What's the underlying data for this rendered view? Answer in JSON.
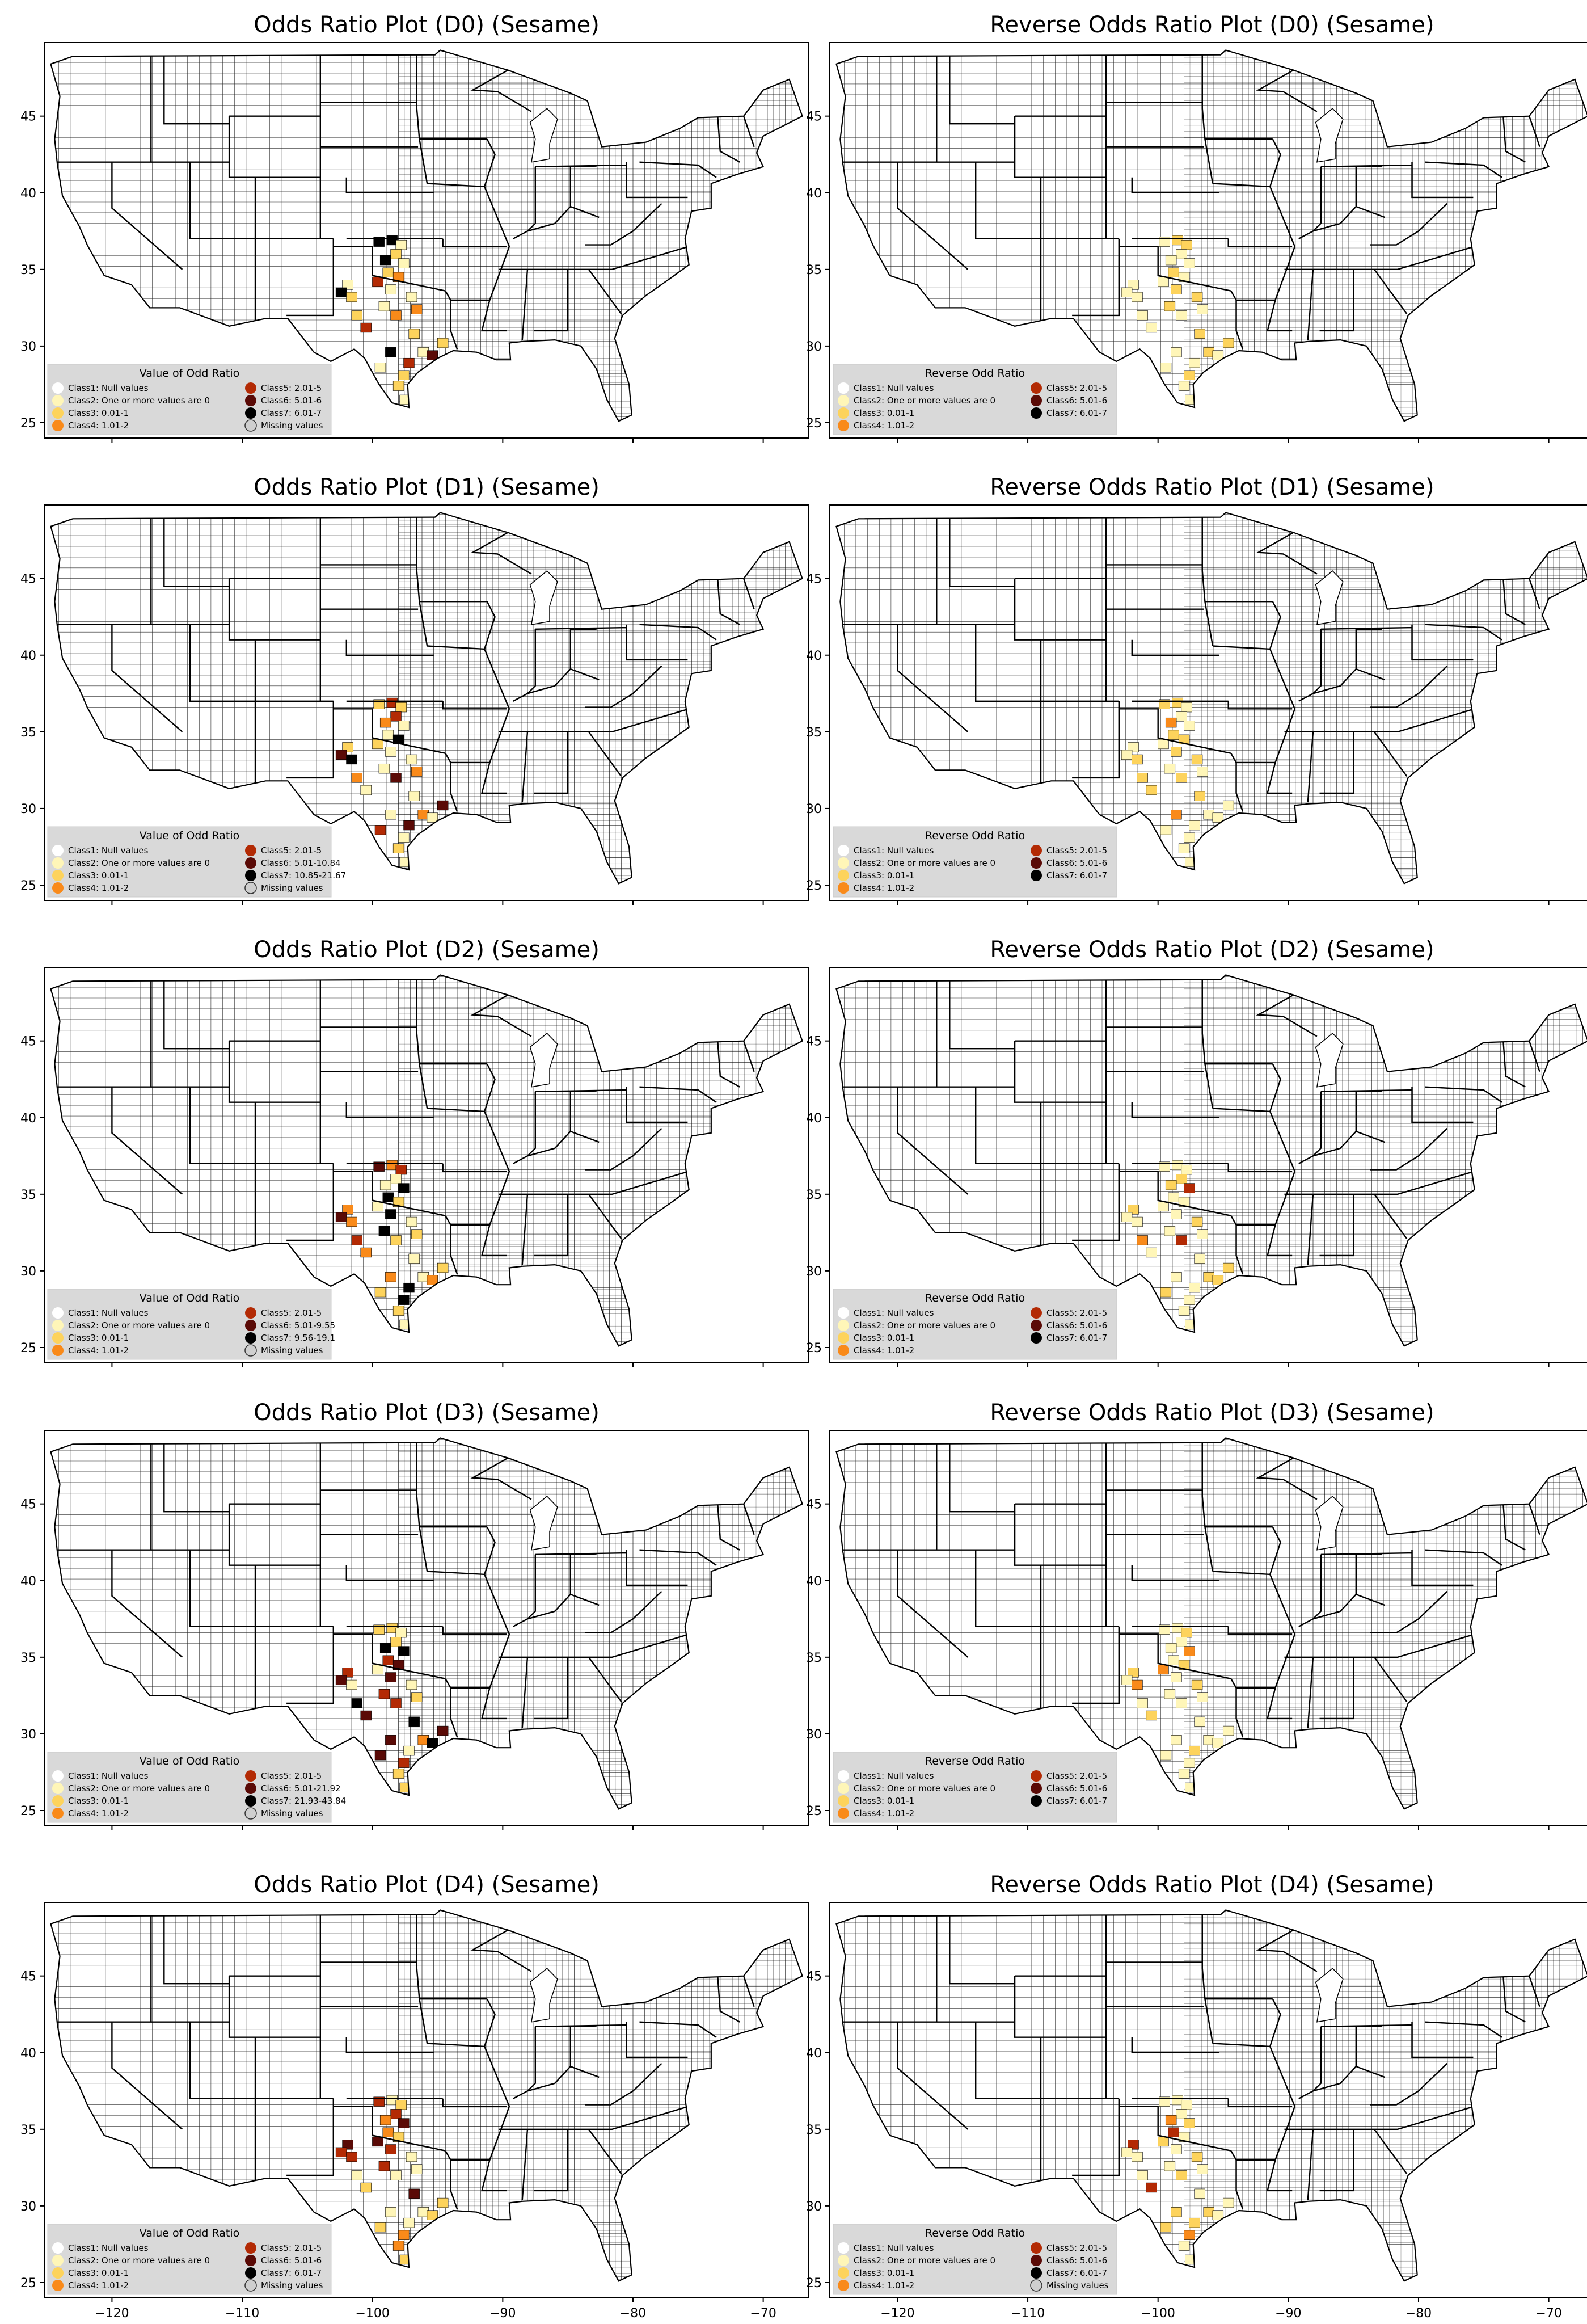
{
  "figure": {
    "panels": [
      {
        "title": "Odds Ratio Plot (D0) (Sesame)",
        "legend_title": "Value of Odd Ratio",
        "classes": [
          "Class1: Null values",
          "Class2: One or more values are 0",
          "Class3: 0.01-1",
          "Class4: 1.01-2",
          "Class5: 2.01-5",
          "Class6: 5.01-6",
          "Class7: 6.01-7",
          "Missing values"
        ]
      },
      {
        "title": "Reverse Odds Ratio Plot (D0) (Sesame)",
        "legend_title": "Reverse Odd Ratio",
        "classes": [
          "Class1: Null values",
          "Class2: One or more values are 0",
          "Class3: 0.01-1",
          "Class4: 1.01-2",
          "Class5: 2.01-5",
          "Class6: 5.01-6",
          "Class7: 6.01-7"
        ]
      },
      {
        "title": "Odds Ratio Plot (D1) (Sesame)",
        "legend_title": "Value of Odd Ratio",
        "classes": [
          "Class1: Null values",
          "Class2: One or more values are 0",
          "Class3: 0.01-1",
          "Class4: 1.01-2",
          "Class5: 2.01-5",
          "Class6: 5.01-10.84",
          "Class7: 10.85-21.67",
          "Missing values"
        ]
      },
      {
        "title": "Reverse Odds Ratio Plot (D1) (Sesame)",
        "legend_title": "Reverse Odd Ratio",
        "classes": [
          "Class1: Null values",
          "Class2: One or more values are 0",
          "Class3: 0.01-1",
          "Class4: 1.01-2",
          "Class5: 2.01-5",
          "Class6: 5.01-6",
          "Class7: 6.01-7"
        ]
      },
      {
        "title": "Odds Ratio Plot (D2) (Sesame)",
        "legend_title": "Value of Odd Ratio",
        "classes": [
          "Class1: Null values",
          "Class2: One or more values are 0",
          "Class3: 0.01-1",
          "Class4: 1.01-2",
          "Class5: 2.01-5",
          "Class6: 5.01-9.55",
          "Class7: 9.56-19.1",
          "Missing values"
        ]
      },
      {
        "title": "Reverse Odds Ratio Plot (D2) (Sesame)",
        "legend_title": "Reverse Odd Ratio",
        "classes": [
          "Class1: Null values",
          "Class2: One or more values are 0",
          "Class3: 0.01-1",
          "Class4: 1.01-2",
          "Class5: 2.01-5",
          "Class6: 5.01-6",
          "Class7: 6.01-7"
        ]
      },
      {
        "title": "Odds Ratio Plot (D3) (Sesame)",
        "legend_title": "Value of Odd Ratio",
        "classes": [
          "Class1: Null values",
          "Class2: One or more values are 0",
          "Class3: 0.01-1",
          "Class4: 1.01-2",
          "Class5: 2.01-5",
          "Class6: 5.01-21.92",
          "Class7: 21.93-43.84",
          "Missing values"
        ]
      },
      {
        "title": "Reverse Odds Ratio Plot (D3) (Sesame)",
        "legend_title": "Reverse Odd Ratio",
        "classes": [
          "Class1: Null values",
          "Class2: One or more values are 0",
          "Class3: 0.01-1",
          "Class4: 1.01-2",
          "Class5: 2.01-5",
          "Class6: 5.01-6",
          "Class7: 6.01-7"
        ]
      },
      {
        "title": "Odds Ratio Plot (D4) (Sesame)",
        "legend_title": "Value of Odd Ratio",
        "classes": [
          "Class1: Null values",
          "Class2: One or more values are 0",
          "Class3: 0.01-1",
          "Class4: 1.01-2",
          "Class5: 2.01-5",
          "Class6: 5.01-6",
          "Class7: 6.01-7",
          "Missing values"
        ]
      },
      {
        "title": "Reverse Odds Ratio Plot (D4) (Sesame)",
        "legend_title": "Reverse Odd Ratio",
        "classes": [
          "Class1: Null values",
          "Class2: One or more values are 0",
          "Class3: 0.01-1",
          "Class4: 1.01-2",
          "Class5: 2.01-5",
          "Class6: 5.01-6",
          "Class7: 6.01-7",
          "Missing values"
        ]
      }
    ],
    "y_ticks": [
      "45",
      "40",
      "35",
      "30",
      "25"
    ],
    "x_ticks": [
      "−120",
      "−110",
      "−100",
      "−90",
      "−80",
      "−70"
    ],
    "class_colors": [
      "#ffffff",
      "#fff6b8",
      "#fdd35c",
      "#f98a1a",
      "#b32a04",
      "#5a0a06",
      "#000000",
      "#cfcfcf"
    ]
  }
}
